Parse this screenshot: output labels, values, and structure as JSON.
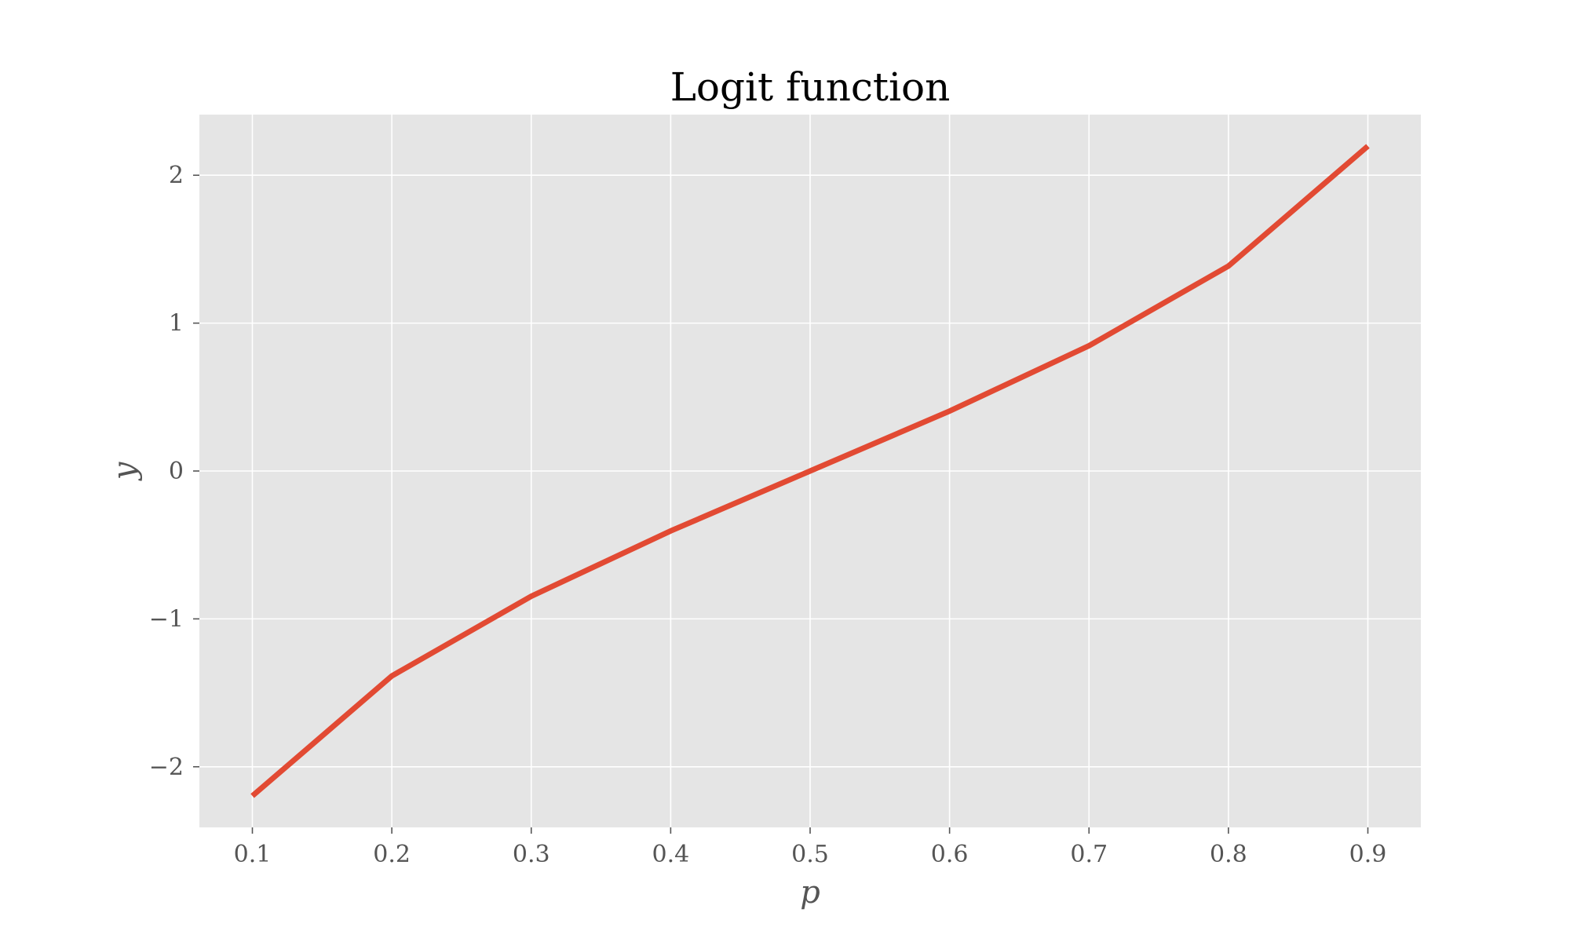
{
  "chart_data": {
    "type": "line",
    "title": "Logit function",
    "xlabel": "p",
    "ylabel": "y",
    "x": [
      0.1,
      0.2,
      0.3,
      0.4,
      0.5,
      0.6,
      0.7,
      0.8,
      0.9
    ],
    "series": [
      {
        "values": [
          -2.197,
          -1.386,
          -0.847,
          -0.405,
          0.0,
          0.405,
          0.847,
          1.386,
          2.197
        ],
        "color": "#E24A33"
      }
    ],
    "xlim": [
      0.062,
      0.938
    ],
    "ylim": [
      -2.41,
      2.41
    ],
    "xticks": [
      0.1,
      0.2,
      0.3,
      0.4,
      0.5,
      0.6,
      0.7,
      0.8,
      0.9
    ],
    "xtick_labels": [
      "0.1",
      "0.2",
      "0.3",
      "0.4",
      "0.5",
      "0.6",
      "0.7",
      "0.8",
      "0.9"
    ],
    "yticks": [
      -2,
      -1,
      0,
      1,
      2
    ],
    "ytick_labels": [
      "−2",
      "−1",
      "0",
      "1",
      "2"
    ],
    "grid": true,
    "legend": "none",
    "colors": {
      "plot_background": "#E5E5E5",
      "grid": "#FFFFFF",
      "tick_text": "#555555"
    }
  }
}
